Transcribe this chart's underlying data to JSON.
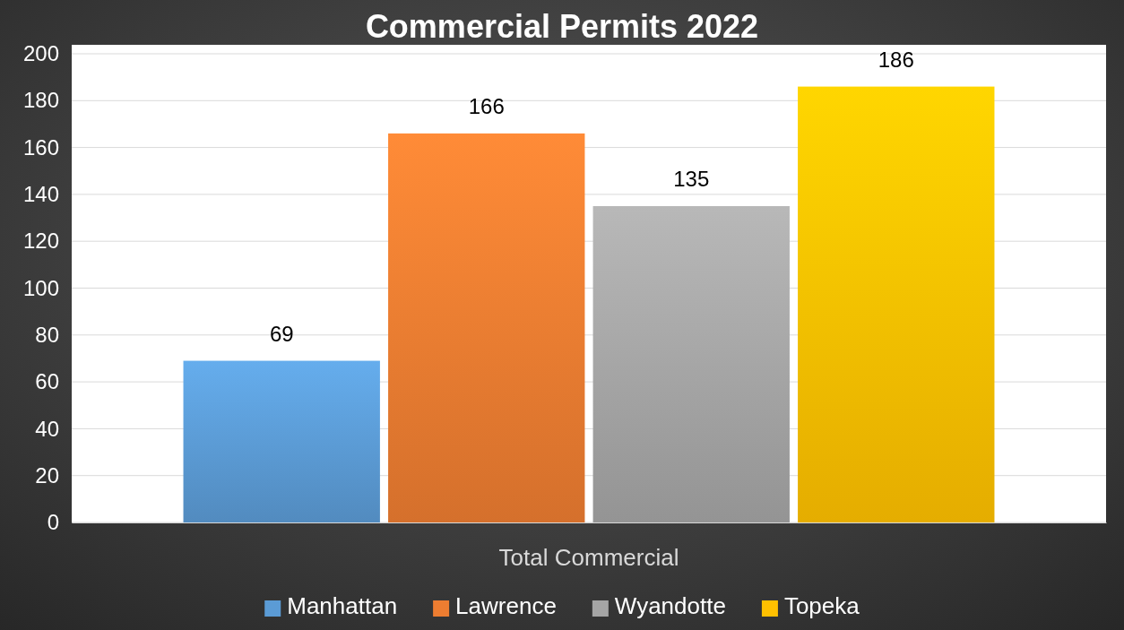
{
  "chart_data": {
    "type": "bar",
    "title": "Commercial Permits 2022",
    "categories": [
      "Total Commercial"
    ],
    "series": [
      {
        "name": "Manhattan",
        "color": "#5b9bd5",
        "values": [
          69
        ]
      },
      {
        "name": "Lawrence",
        "color": "#ed7d31",
        "values": [
          166
        ]
      },
      {
        "name": "Wyandotte",
        "color": "#a5a5a5",
        "values": [
          135
        ]
      },
      {
        "name": "Topeka",
        "color": "#ffc000",
        "values": [
          186
        ]
      }
    ],
    "ylim": [
      0,
      200
    ],
    "yticks": [
      0,
      20,
      40,
      60,
      80,
      100,
      120,
      140,
      160,
      180,
      200
    ],
    "grid": "y",
    "data_labels": true,
    "legend": "bottom"
  }
}
